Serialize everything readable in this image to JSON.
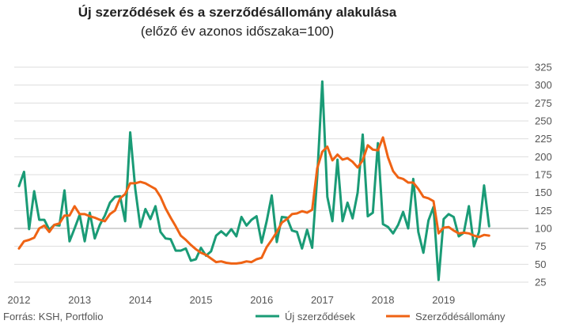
{
  "chart_data": {
    "type": "line",
    "title": "Új szerződések és a szerződésállomány alakulása",
    "subtitle": "(előző év azonos időszaka=100)",
    "source": "Forrás: KSH, Portfolio",
    "x_start": "2012-01",
    "x_tick_labels": [
      "2012",
      "2013",
      "2014",
      "2015",
      "2016",
      "2017",
      "2018",
      "2019"
    ],
    "y_ticks": [
      25,
      50,
      75,
      100,
      125,
      150,
      175,
      200,
      225,
      250,
      275,
      300,
      325
    ],
    "ylim": [
      25,
      325
    ],
    "y_axis_position": "right",
    "grid": true,
    "legend_position": "bottom",
    "colors": {
      "uj": "#1a9b76",
      "allomany": "#ef6314",
      "grid": "#dddddd",
      "baseline": "#aaaaaa"
    },
    "series": [
      {
        "name": "Új szerződések",
        "key": "uj",
        "values": [
          159,
          179,
          99,
          152,
          112,
          112,
          98,
          105,
          104,
          153,
          82,
          100,
          119,
          82,
          122,
          86,
          105,
          118,
          136,
          144,
          145,
          110,
          234,
          155,
          102,
          127,
          113,
          131,
          95,
          86,
          85,
          69,
          69,
          72,
          55,
          57,
          73,
          62,
          68,
          90,
          96,
          90,
          99,
          89,
          116,
          104,
          112,
          117,
          80,
          110,
          146,
          81,
          116,
          115,
          97,
          95,
          72,
          98,
          73,
          172,
          305,
          144,
          110,
          196,
          110,
          136,
          114,
          150,
          231,
          117,
          122,
          219,
          106,
          102,
          93,
          105,
          123,
          100,
          169,
          95,
          66,
          111,
          130,
          28,
          113,
          120,
          116,
          89,
          94,
          131,
          75,
          95,
          160,
          103
        ]
      },
      {
        "name": "Szerződésállomány",
        "key": "allomany",
        "values": [
          72,
          82,
          84,
          87,
          100,
          104,
          95,
          105,
          107,
          118,
          118,
          131,
          120,
          120,
          117,
          115,
          112,
          110,
          120,
          125,
          142,
          148,
          163,
          163,
          165,
          163,
          159,
          155,
          144,
          128,
          115,
          103,
          90,
          84,
          77,
          71,
          66,
          63,
          58,
          53,
          54,
          52,
          51,
          51,
          52,
          54,
          53,
          57,
          59,
          74,
          84,
          95,
          108,
          113,
          120,
          121,
          124,
          122,
          126,
          184,
          207,
          214,
          195,
          203,
          196,
          198,
          193,
          185,
          195,
          216,
          210,
          209,
          227,
          199,
          180,
          171,
          169,
          164,
          164,
          155,
          144,
          142,
          138,
          93,
          101,
          102,
          97,
          93,
          94,
          93,
          90,
          88,
          91,
          90
        ]
      }
    ]
  }
}
